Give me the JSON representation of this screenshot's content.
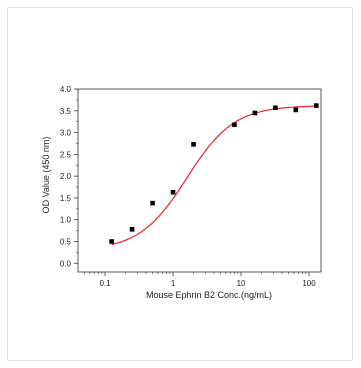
{
  "chart_data": {
    "type": "scatter",
    "xlabel": "Mouse Ephrin B2 Conc.(ng/mL)",
    "ylabel": "OD Value (450 nm)",
    "x_scale": "log",
    "xlim": [
      0.04,
      150
    ],
    "ylim": [
      -0.2,
      4.0
    ],
    "x_ticks": [
      0.1,
      1,
      10,
      100
    ],
    "x_tick_labels": [
      "0.1",
      "1",
      "10",
      "100"
    ],
    "y_ticks": [
      0,
      0.5,
      1.0,
      1.5,
      2.0,
      2.5,
      3.0,
      3.5,
      4.0
    ],
    "y_tick_labels": [
      "0.0",
      "0.5",
      "1.0",
      "1.5",
      "2.0",
      "2.5",
      "3.0",
      "3.5",
      "4.0"
    ],
    "grid": false,
    "series": [
      {
        "x": [
          0.125,
          0.25,
          0.5,
          1,
          2,
          8,
          16,
          32,
          64,
          128
        ],
        "y": [
          0.5,
          0.78,
          1.38,
          1.63,
          2.73,
          3.18,
          3.45,
          3.57,
          3.52,
          3.62
        ],
        "marker": "square",
        "color": "#000000"
      }
    ],
    "fit_curve": {
      "type": "four-parameter-logistic",
      "color": "#e8232a",
      "bottom": 0.3,
      "top": 3.62,
      "ec50": 1.6,
      "hill": 1.25
    }
  }
}
